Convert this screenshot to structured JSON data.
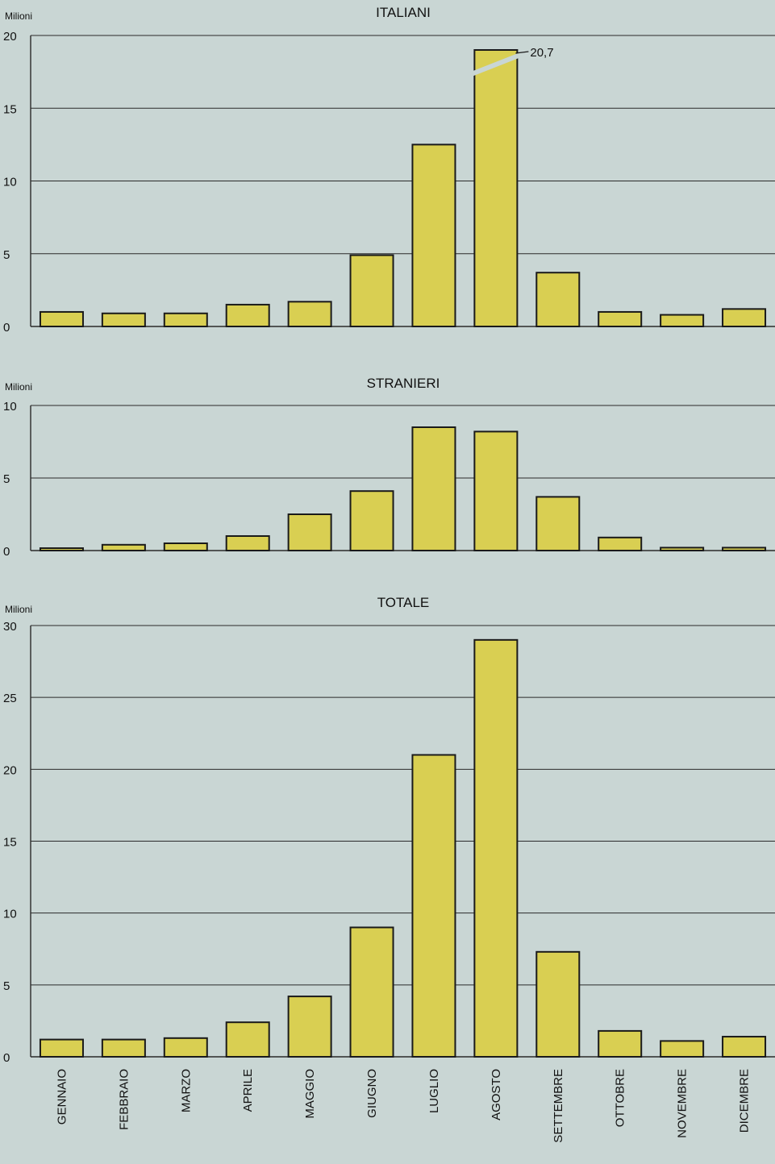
{
  "colors": {
    "page_background": "#c9d6d4",
    "bar_fill": "#d9cf52",
    "bar_stroke": "#1a1a1a",
    "gridline": "#2a2a2a",
    "text": "#111111"
  },
  "months": [
    "GENNAIO",
    "FEBBRAIO",
    "MARZO",
    "APRILE",
    "MAGGIO",
    "GIUGNO",
    "LUGLIO",
    "AGOSTO",
    "SETTEMBRE",
    "OTTOBRE",
    "NOVEMBRE",
    "DICEMBRE"
  ],
  "chart_data": [
    {
      "type": "bar",
      "title": "ITALIANI",
      "ylabel": "Milioni",
      "categories": [
        "GENNAIO",
        "FEBBRAIO",
        "MARZO",
        "APRILE",
        "MAGGIO",
        "GIUGNO",
        "LUGLIO",
        "AGOSTO",
        "SETTEMBRE",
        "OTTOBRE",
        "NOVEMBRE",
        "DICEMBRE"
      ],
      "values": [
        1.0,
        0.9,
        0.9,
        1.5,
        1.7,
        4.9,
        12.5,
        20.7,
        3.7,
        1.0,
        0.8,
        1.2
      ],
      "ylim": [
        0,
        20
      ],
      "yticks": [
        0,
        5,
        10,
        15,
        20
      ],
      "annotation": {
        "category": "AGOSTO",
        "label": "20,7",
        "axis_break": true
      },
      "grid": true
    },
    {
      "type": "bar",
      "title": "STRANIERI",
      "ylabel": "Milioni",
      "categories": [
        "GENNAIO",
        "FEBBRAIO",
        "MARZO",
        "APRILE",
        "MAGGIO",
        "GIUGNO",
        "LUGLIO",
        "AGOSTO",
        "SETTEMBRE",
        "OTTOBRE",
        "NOVEMBRE",
        "DICEMBRE"
      ],
      "values": [
        0.1,
        0.4,
        0.5,
        1.0,
        2.5,
        4.1,
        8.5,
        8.2,
        3.7,
        0.9,
        0.2,
        0.2
      ],
      "ylim": [
        0,
        10
      ],
      "yticks": [
        0,
        5,
        10
      ],
      "grid": true
    },
    {
      "type": "bar",
      "title": "TOTALE",
      "ylabel": "Milioni",
      "categories": [
        "GENNAIO",
        "FEBBRAIO",
        "MARZO",
        "APRILE",
        "MAGGIO",
        "GIUGNO",
        "LUGLIO",
        "AGOSTO",
        "SETTEMBRE",
        "OTTOBRE",
        "NOVEMBRE",
        "DICEMBRE"
      ],
      "values": [
        1.2,
        1.2,
        1.3,
        2.4,
        4.2,
        9.0,
        21.0,
        29.0,
        7.3,
        1.8,
        1.1,
        1.4
      ],
      "ylim": [
        0,
        30
      ],
      "yticks": [
        0,
        5,
        10,
        15,
        20,
        25,
        30
      ],
      "grid": true
    }
  ]
}
